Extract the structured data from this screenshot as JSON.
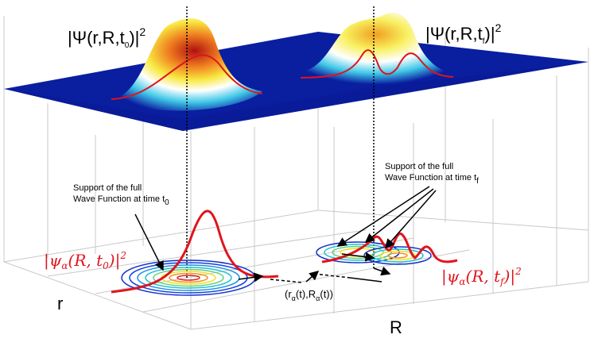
{
  "labels": {
    "psi_t0_prefix": "|Ψ(r,R,t",
    "psi_t0_sub": "0",
    "psi_t0_suffix": ")|",
    "psi_t0_exp": "2",
    "psi_tf_prefix": "|Ψ(r,R,t",
    "psi_tf_sub": "f",
    "psi_tf_suffix": ")|",
    "psi_tf_exp": "2",
    "support_t0_line1": "Support of the full",
    "support_t0_line2": "Wave Function at time t",
    "support_t0_sub": "0",
    "support_tf_line1": "Support of the full",
    "support_tf_line2": "Wave Function at time t",
    "support_tf_sub": "f",
    "psi_alpha_t0_prefix": "|ψ",
    "psi_alpha_t0_sub": "α",
    "psi_alpha_t0_mid": "(R, t",
    "psi_alpha_t0_sub2": "0",
    "psi_alpha_t0_suffix": ")|",
    "psi_alpha_t0_exp": "2",
    "psi_alpha_tf_prefix": "|ψ",
    "psi_alpha_tf_sub": "α",
    "psi_alpha_tf_mid": "(R, t",
    "psi_alpha_tf_sub2": "f",
    "psi_alpha_tf_suffix": ")|",
    "psi_alpha_tf_exp": "2",
    "traj_prefix": "(r",
    "traj_sub1": "α",
    "traj_mid": "(t),R",
    "traj_sub2": "α",
    "traj_suffix": "(t))",
    "axis_r": "r",
    "axis_R": "R"
  },
  "colors": {
    "surface": "#0a1ea0",
    "curve": "#e0141c",
    "contour_outer": "#1030c8",
    "contour_mid": "#20c0d0",
    "contour_inner": "#f0e020",
    "contour_core": "#e02020"
  }
}
